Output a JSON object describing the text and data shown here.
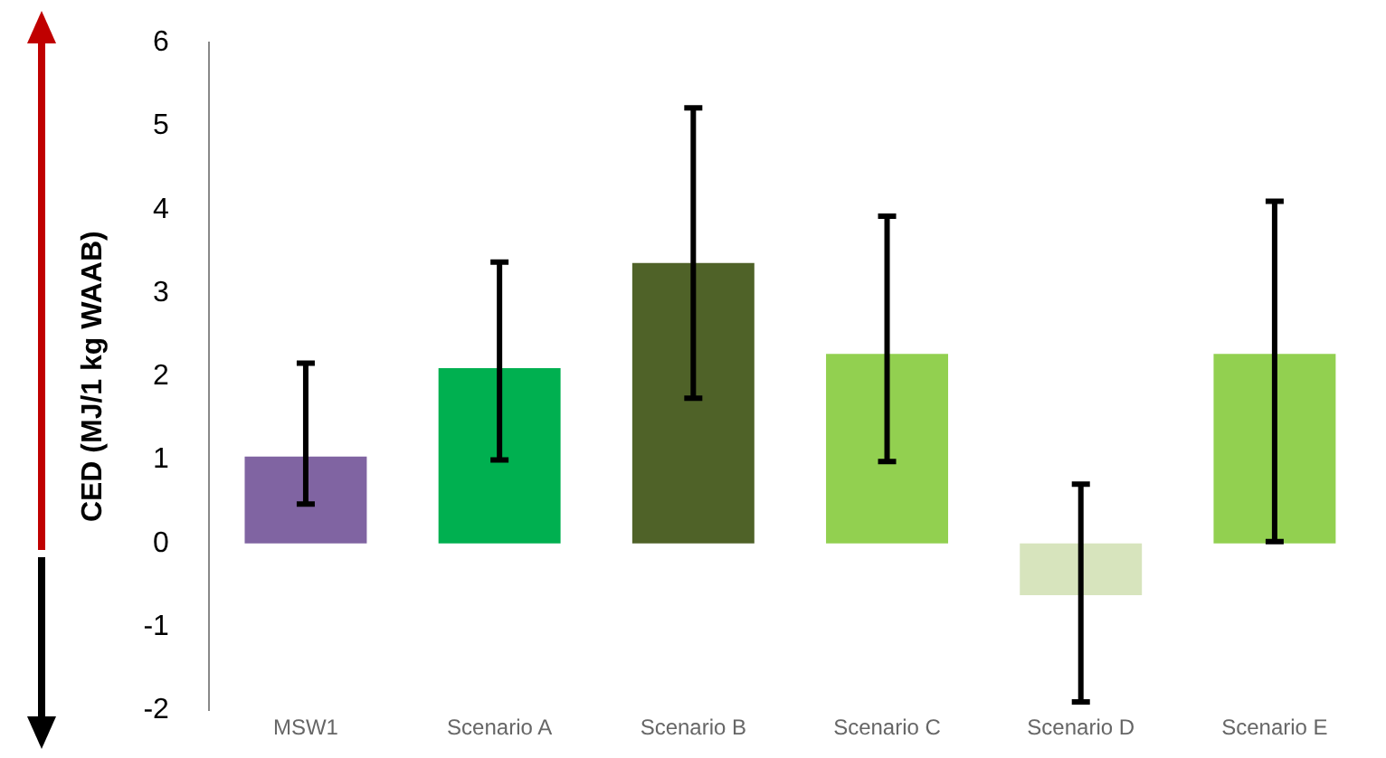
{
  "chart_data": {
    "type": "bar",
    "ylabel": "CED (MJ/1 kg WAAB)",
    "categories": [
      "MSW1",
      "Scenario A",
      "Scenario B",
      "Scenario C",
      "Scenario D",
      "Scenario E"
    ],
    "values": [
      1.04,
      2.1,
      3.36,
      2.27,
      -0.62,
      2.27
    ],
    "colors": [
      "#8064a2",
      "#00b050",
      "#4f6228",
      "#92d050",
      "#d7e4bd",
      "#92d050"
    ],
    "errors": [
      [
        0.47,
        2.16
      ],
      [
        1.0,
        3.37
      ],
      [
        1.74,
        5.22
      ],
      [
        0.98,
        3.92
      ],
      [
        -1.9,
        0.71
      ],
      [
        0.02,
        4.1
      ]
    ],
    "ylim": [
      -2,
      6
    ],
    "yticks": [
      -2,
      -1,
      0,
      1,
      2,
      3,
      4,
      5,
      6
    ],
    "grid": false,
    "legend": false
  }
}
